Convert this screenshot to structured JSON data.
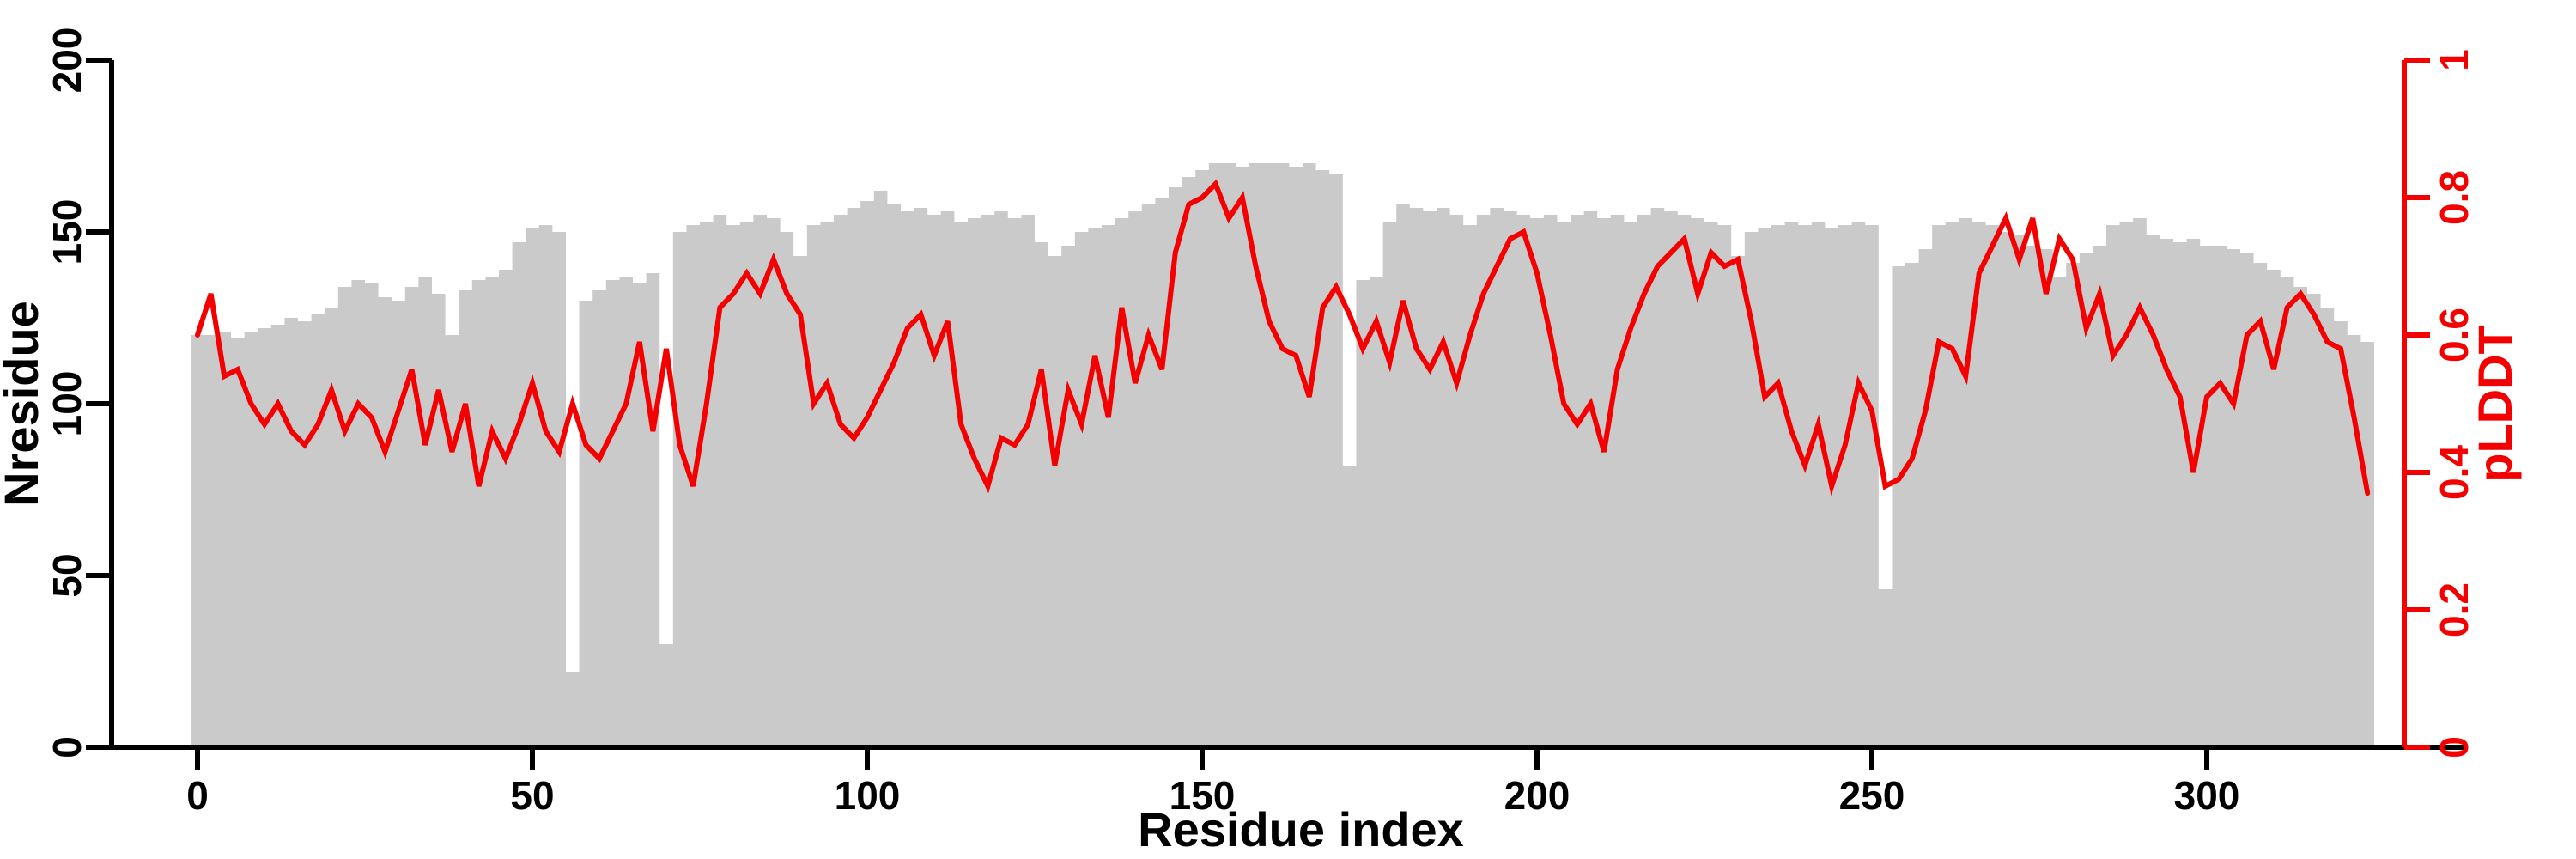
{
  "figure": {
    "background": "#ffffff",
    "bar_color": "#cacaca",
    "line_color": "#f40000",
    "axis_color": "#000000",
    "right_axis_color": "#f40000"
  },
  "chart_data": {
    "type": "bar",
    "subtype": "bar+line dual-axis",
    "title": "",
    "xlabel": "Residue index",
    "ylabel_left": "Nresidue",
    "ylabel_right": "pLDDT",
    "xlim": [
      -13,
      339
    ],
    "ylim_left": [
      0,
      200
    ],
    "ylim_right": [
      0,
      1
    ],
    "x_ticks": [
      0,
      50,
      100,
      150,
      200,
      250,
      300
    ],
    "left_ticks": [
      0,
      50,
      100,
      150,
      200
    ],
    "right_ticks": [
      0,
      0.2,
      0.4,
      0.6,
      0.8,
      1
    ],
    "grid": false,
    "legend": "none",
    "x": [
      0,
      2,
      4,
      6,
      8,
      10,
      12,
      14,
      16,
      18,
      20,
      22,
      24,
      26,
      28,
      30,
      32,
      34,
      36,
      38,
      40,
      42,
      44,
      46,
      48,
      50,
      52,
      54,
      56,
      58,
      60,
      62,
      64,
      66,
      68,
      70,
      72,
      74,
      76,
      78,
      80,
      82,
      84,
      86,
      88,
      90,
      92,
      94,
      96,
      98,
      100,
      102,
      104,
      106,
      108,
      110,
      112,
      114,
      116,
      118,
      120,
      122,
      124,
      126,
      128,
      130,
      132,
      134,
      136,
      138,
      140,
      142,
      144,
      146,
      148,
      150,
      152,
      154,
      156,
      158,
      160,
      162,
      164,
      166,
      168,
      170,
      172,
      174,
      176,
      178,
      180,
      182,
      184,
      186,
      188,
      190,
      192,
      194,
      196,
      198,
      200,
      202,
      204,
      206,
      208,
      210,
      212,
      214,
      216,
      218,
      220,
      222,
      224,
      226,
      228,
      230,
      232,
      234,
      236,
      238,
      240,
      242,
      244,
      246,
      248,
      250,
      252,
      254,
      256,
      258,
      260,
      262,
      264,
      266,
      268,
      270,
      272,
      274,
      276,
      278,
      280,
      282,
      284,
      286,
      288,
      290,
      292,
      294,
      296,
      298,
      300,
      302,
      304,
      306,
      308,
      310,
      312,
      314,
      316,
      318,
      320,
      322,
      324
    ],
    "series": [
      {
        "name": "Nresidue",
        "type": "bar",
        "axis": "left",
        "color": "#cacaca",
        "values": [
          120,
          120,
          121,
          119,
          121,
          122,
          123,
          125,
          124,
          126,
          128,
          134,
          136,
          135,
          131,
          130,
          134,
          137,
          132,
          120,
          133,
          136,
          137,
          139,
          147,
          151,
          152,
          150,
          22,
          130,
          133,
          136,
          137,
          135,
          138,
          30,
          150,
          152,
          153,
          155,
          152,
          153,
          155,
          154,
          150,
          143,
          152,
          153,
          155,
          157,
          159,
          162,
          158,
          156,
          157,
          155,
          156,
          153,
          154,
          155,
          156,
          154,
          155,
          147,
          143,
          146,
          150,
          151,
          152,
          154,
          156,
          158,
          160,
          163,
          166,
          168,
          170,
          170,
          169,
          170,
          170,
          170,
          169,
          170,
          168,
          167,
          82,
          136,
          137,
          153,
          158,
          157,
          156,
          157,
          155,
          152,
          155,
          157,
          156,
          155,
          154,
          155,
          153,
          155,
          156,
          154,
          155,
          153,
          155,
          157,
          156,
          155,
          154,
          153,
          152,
          143,
          150,
          151,
          152,
          153,
          152,
          153,
          151,
          152,
          153,
          152,
          46,
          140,
          141,
          145,
          152,
          153,
          154,
          153,
          152,
          150,
          149,
          146,
          145,
          137,
          141,
          144,
          146,
          152,
          153,
          154,
          149,
          148,
          147,
          148,
          146,
          146,
          145,
          144,
          141,
          139,
          137,
          134,
          132,
          128,
          124,
          120,
          118
        ]
      },
      {
        "name": "pLDDT",
        "type": "line",
        "axis": "right",
        "color": "#f40000",
        "values": [
          0.6,
          0.66,
          0.54,
          0.55,
          0.5,
          0.47,
          0.5,
          0.46,
          0.44,
          0.47,
          0.52,
          0.46,
          0.5,
          0.48,
          0.43,
          0.49,
          0.55,
          0.44,
          0.52,
          0.43,
          0.5,
          0.38,
          0.46,
          0.42,
          0.47,
          0.53,
          0.46,
          0.43,
          0.5,
          0.44,
          0.42,
          0.46,
          0.5,
          0.59,
          0.46,
          0.58,
          0.44,
          0.38,
          0.5,
          0.64,
          0.66,
          0.69,
          0.66,
          0.71,
          0.66,
          0.63,
          0.5,
          0.53,
          0.47,
          0.45,
          0.48,
          0.52,
          0.56,
          0.61,
          0.63,
          0.57,
          0.62,
          0.47,
          0.42,
          0.38,
          0.45,
          0.44,
          0.47,
          0.55,
          0.41,
          0.52,
          0.47,
          0.57,
          0.48,
          0.64,
          0.53,
          0.6,
          0.55,
          0.72,
          0.79,
          0.8,
          0.82,
          0.77,
          0.8,
          0.7,
          0.62,
          0.58,
          0.57,
          0.51,
          0.64,
          0.67,
          0.63,
          0.58,
          0.62,
          0.56,
          0.65,
          0.58,
          0.55,
          0.59,
          0.53,
          0.6,
          0.66,
          0.7,
          0.74,
          0.75,
          0.69,
          0.6,
          0.5,
          0.47,
          0.5,
          0.43,
          0.55,
          0.61,
          0.66,
          0.7,
          0.72,
          0.74,
          0.66,
          0.72,
          0.7,
          0.71,
          0.62,
          0.51,
          0.53,
          0.46,
          0.41,
          0.47,
          0.38,
          0.44,
          0.53,
          0.49,
          0.38,
          0.39,
          0.42,
          0.49,
          0.59,
          0.58,
          0.54,
          0.69,
          0.73,
          0.77,
          0.71,
          0.77,
          0.66,
          0.74,
          0.71,
          0.61,
          0.66,
          0.57,
          0.6,
          0.64,
          0.6,
          0.55,
          0.51,
          0.4,
          0.51,
          0.53,
          0.5,
          0.6,
          0.62,
          0.55,
          0.64,
          0.66,
          0.63,
          0.59,
          0.58,
          0.48,
          0.37
        ]
      }
    ]
  }
}
